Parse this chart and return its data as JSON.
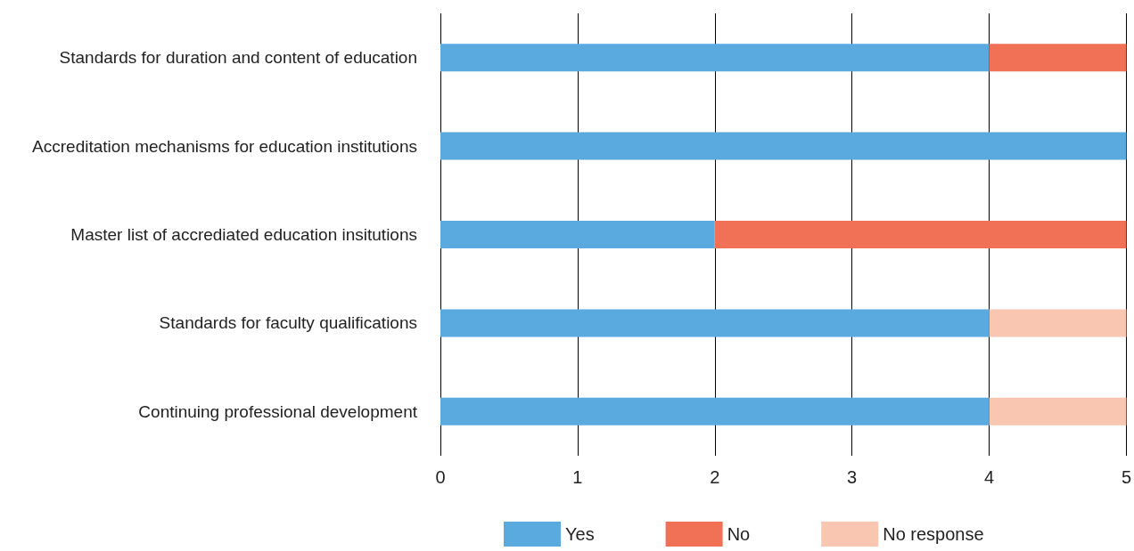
{
  "chart_data": {
    "type": "bar",
    "orientation": "horizontal",
    "stacked": true,
    "categories": [
      "Standards for duration and content of education",
      "Accreditation mechanisms for education institutions",
      "Master list of accrediated education insitutions",
      "Standards for faculty qualifications",
      "Continuing professional development"
    ],
    "series": [
      {
        "name": "Yes",
        "color": "#5aaae0",
        "values": [
          4,
          5,
          2,
          4,
          4
        ]
      },
      {
        "name": "No",
        "color": "#f07155",
        "values": [
          1,
          0,
          3,
          0,
          0
        ]
      },
      {
        "name": "No response",
        "color": "#f9c6b2",
        "values": [
          0,
          0,
          0,
          1,
          1
        ]
      }
    ],
    "xlim": [
      0,
      5
    ],
    "xticks": [
      0,
      1,
      2,
      3,
      4,
      5
    ],
    "grid": "x",
    "legend": "bottom"
  }
}
